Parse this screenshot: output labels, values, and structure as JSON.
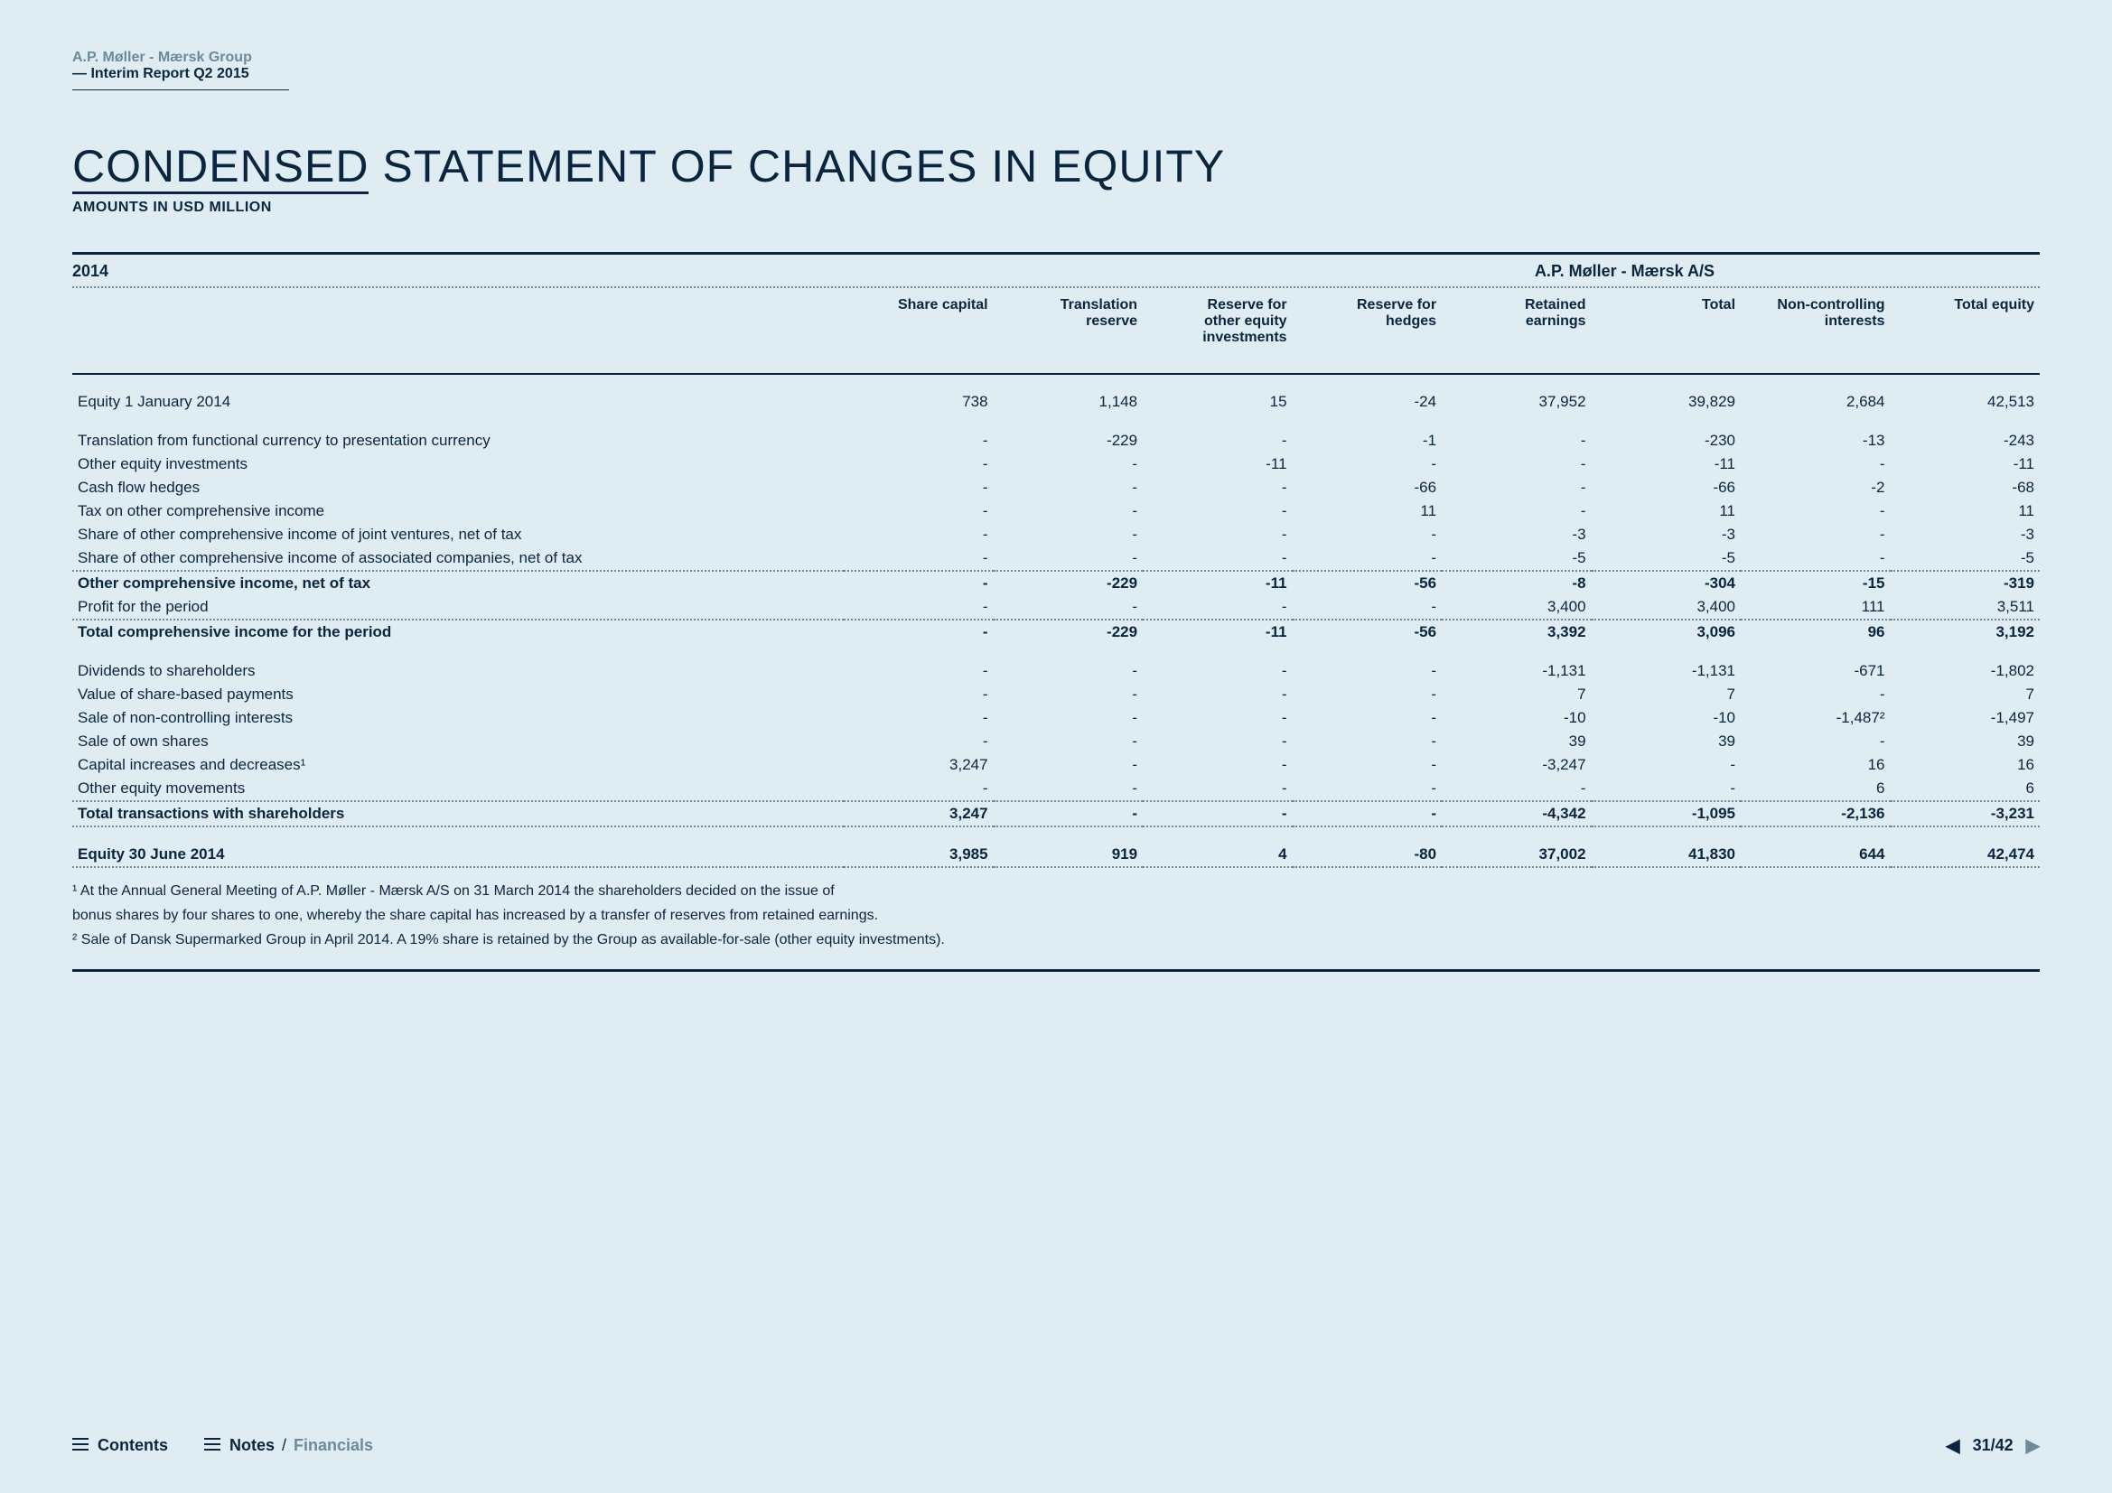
{
  "header": {
    "company": "A.P. Møller - Mærsk Group",
    "report": "— Interim Report Q2 2015"
  },
  "title": {
    "condensed": "CONDENSED",
    "rest": " STATEMENT OF CHANGES IN EQUITY",
    "sub": "AMOUNTS IN USD MILLION"
  },
  "year": "2014",
  "entity": "A.P. Møller - Mærsk A/S",
  "columns": [
    "",
    "Share capital",
    "Translation reserve",
    "Reserve for other equity investments",
    "Reserve for hedges",
    "Retained earnings",
    "Total",
    "Non-controlling interests",
    "Total equity"
  ],
  "rows": [
    {
      "label": "Equity 1 January 2014",
      "v": [
        "738",
        "1,148",
        "15",
        "-24",
        "37,952",
        "39,829",
        "2,684",
        "42,513"
      ],
      "cls": "gap"
    },
    {
      "label": "Translation from functional currency to presentation currency",
      "v": [
        "-",
        "-229",
        "-",
        "-1",
        "-",
        "-230",
        "-13",
        "-243"
      ],
      "cls": "gap"
    },
    {
      "label": "Other equity investments",
      "v": [
        "-",
        "-",
        "-11",
        "-",
        "-",
        "-11",
        "-",
        "-11"
      ]
    },
    {
      "label": "Cash flow hedges",
      "v": [
        "-",
        "-",
        "-",
        "-66",
        "-",
        "-66",
        "-2",
        "-68"
      ]
    },
    {
      "label": "Tax on other comprehensive income",
      "v": [
        "-",
        "-",
        "-",
        "11",
        "-",
        "11",
        "-",
        "11"
      ]
    },
    {
      "label": "Share of other comprehensive income of joint ventures, net of tax",
      "v": [
        "-",
        "-",
        "-",
        "-",
        "-3",
        "-3",
        "-",
        "-3"
      ]
    },
    {
      "label": "Share of other comprehensive income of associated companies, net of tax",
      "v": [
        "-",
        "-",
        "-",
        "-",
        "-5",
        "-5",
        "-",
        "-5"
      ]
    },
    {
      "label": "Other comprehensive income, net of tax",
      "v": [
        "-",
        "-229",
        "-11",
        "-56",
        "-8",
        "-304",
        "-15",
        "-319"
      ],
      "cls": "bold dotted-above"
    },
    {
      "label": "Profit for the period",
      "v": [
        "-",
        "-",
        "-",
        "-",
        "3,400",
        "3,400",
        "111",
        "3,511"
      ]
    },
    {
      "label": "Total comprehensive income for the period",
      "v": [
        "-",
        "-229",
        "-11",
        "-56",
        "3,392",
        "3,096",
        "96",
        "3,192"
      ],
      "cls": "bold dotted-above"
    },
    {
      "label": "Dividends to shareholders",
      "v": [
        "-",
        "-",
        "-",
        "-",
        "-1,131",
        "-1,131",
        "-671",
        "-1,802"
      ],
      "cls": "gap"
    },
    {
      "label": "Value of share-based payments",
      "v": [
        "-",
        "-",
        "-",
        "-",
        "7",
        "7",
        "-",
        "7"
      ]
    },
    {
      "label": "Sale of non-controlling interests",
      "v": [
        "-",
        "-",
        "-",
        "-",
        "-10",
        "-10",
        "-1,487²",
        "-1,497"
      ]
    },
    {
      "label": "Sale of own shares",
      "v": [
        "-",
        "-",
        "-",
        "-",
        "39",
        "39",
        "-",
        "39"
      ]
    },
    {
      "label": "Capital increases and decreases¹",
      "v": [
        "3,247",
        "-",
        "-",
        "-",
        "-3,247",
        "-",
        "16",
        "16"
      ]
    },
    {
      "label": "Other equity movements",
      "v": [
        "-",
        "-",
        "-",
        "-",
        "-",
        "-",
        "6",
        "6"
      ]
    },
    {
      "label": "Total transactions with shareholders",
      "v": [
        "3,247",
        "-",
        "-",
        "-",
        "-4,342",
        "-1,095",
        "-2,136",
        "-3,231"
      ],
      "cls": "bold dotted-above"
    },
    {
      "label": "Equity 30 June 2014",
      "v": [
        "3,985",
        "919",
        "4",
        "-80",
        "37,002",
        "41,830",
        "644",
        "42,474"
      ],
      "cls": "bold double-dotted gap"
    }
  ],
  "footnotes": [
    "¹ At the Annual General Meeting of A.P. Møller - Mærsk A/S on 31 March 2014 the shareholders decided on the issue of",
    "  bonus shares by four shares to one, whereby the share capital has increased by a transfer of reserves from retained earnings.",
    "² Sale of Dansk Supermarked Group in April 2014. A 19% share is retained by the Group as available-for-sale (other equity investments)."
  ],
  "footer": {
    "contents": "Contents",
    "notes": "Notes",
    "financials": "Financials",
    "page": "31/42"
  }
}
